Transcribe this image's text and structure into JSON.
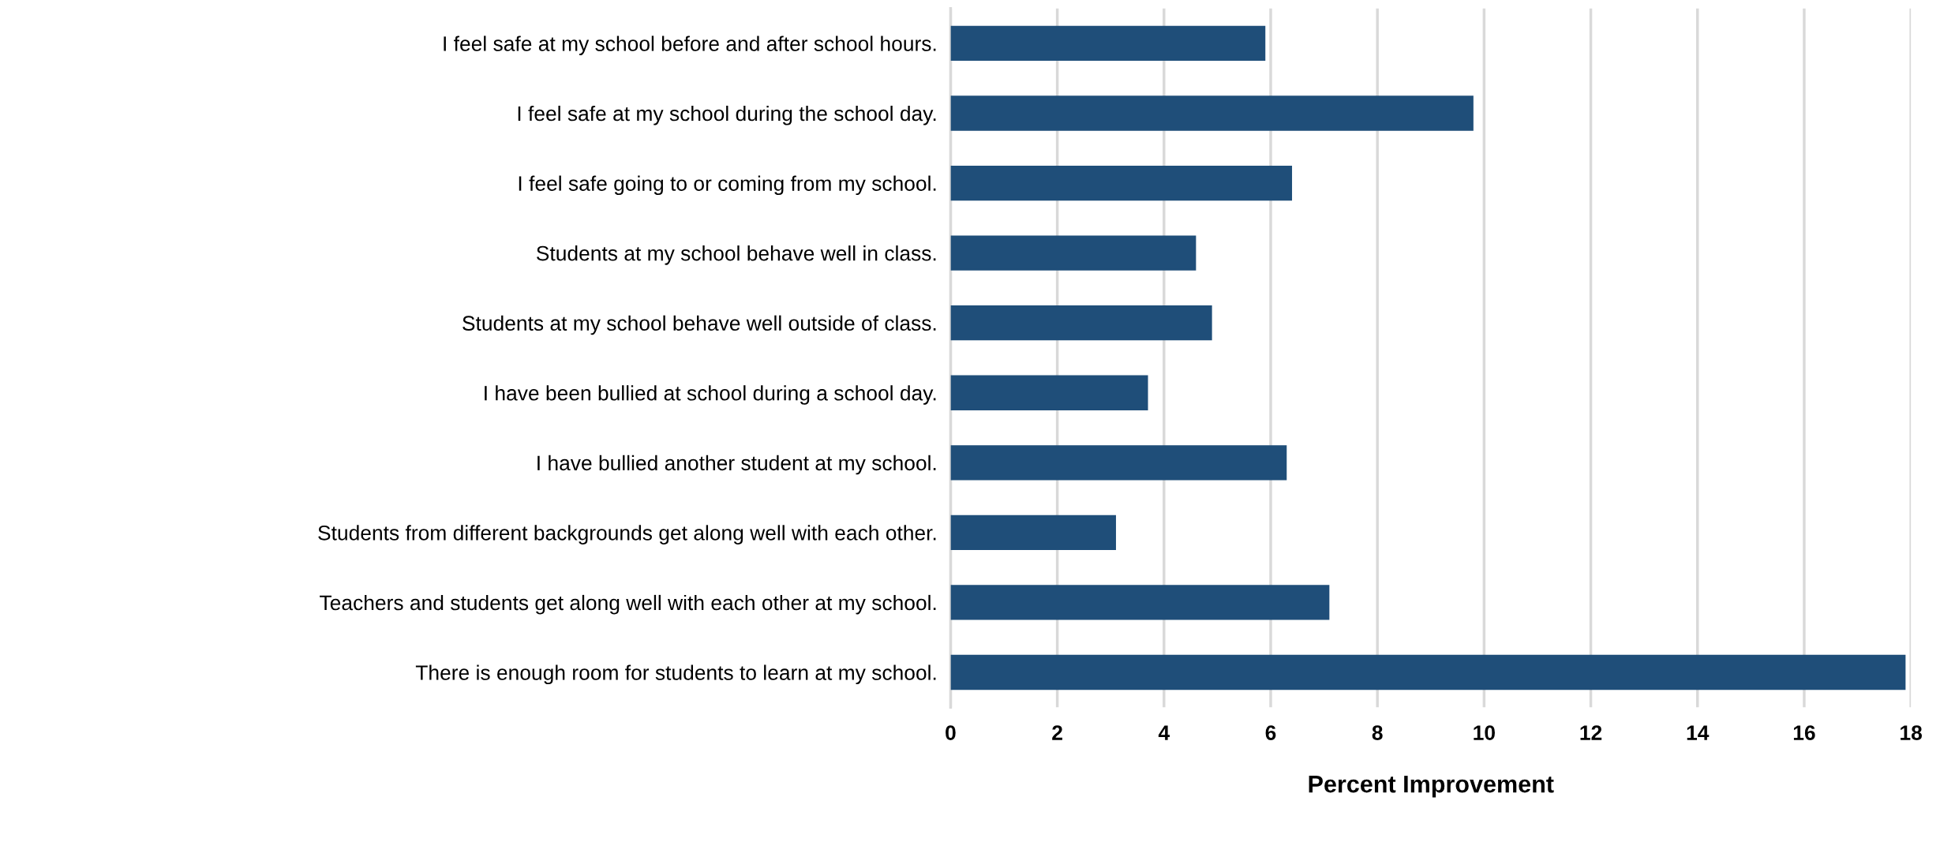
{
  "chart_data": {
    "type": "bar",
    "orientation": "horizontal",
    "categories": [
      "I feel safe at my school before and after school hours.",
      "I feel safe at my school during the school day.",
      "I feel safe going to or coming from my school.",
      "Students at my school behave well in class.",
      "Students at my school behave well outside of class.",
      "I have been bullied at school during a school day.",
      "I have bullied another student at my school.",
      "Students from different backgrounds get along well with each other.",
      "Teachers and students get along well with each other at my school.",
      "There is enough room for students to learn at my school."
    ],
    "values": [
      5.9,
      9.8,
      6.4,
      4.6,
      4.9,
      3.7,
      6.3,
      3.1,
      7.1,
      17.9
    ],
    "color": "#1f4e79",
    "xlabel": "Percent Improvement",
    "xlim": [
      0,
      18
    ],
    "xticks": [
      0,
      2,
      4,
      6,
      8,
      10,
      12,
      14,
      16,
      18
    ],
    "grid": "x"
  }
}
